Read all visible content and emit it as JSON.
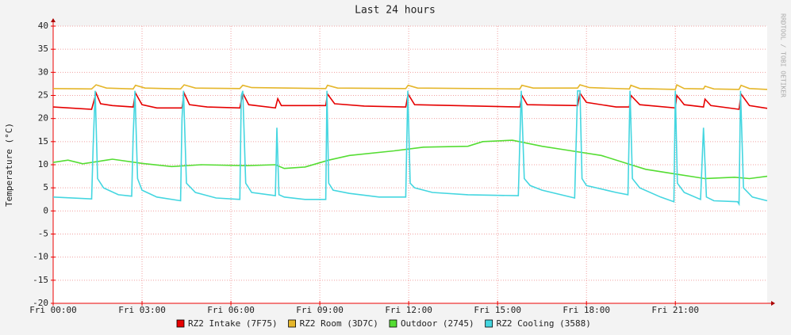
{
  "chart_data": {
    "type": "line",
    "title": "Last 24 hours",
    "y_label": "Temperature (°C)",
    "watermark": "RRDTOOL / TOBI OETIKER",
    "xlim": [
      0,
      24.1
    ],
    "ylim": [
      -20,
      40
    ],
    "xticks": [
      {
        "value": 0,
        "label": "Fri 00:00"
      },
      {
        "value": 3,
        "label": "Fri 03:00"
      },
      {
        "value": 6,
        "label": "Fri 06:00"
      },
      {
        "value": 9,
        "label": "Fri 09:00"
      },
      {
        "value": 12,
        "label": "Fri 12:00"
      },
      {
        "value": 15,
        "label": "Fri 15:00"
      },
      {
        "value": 18,
        "label": "Fri 18:00"
      },
      {
        "value": 21,
        "label": "Fri 21:00"
      }
    ],
    "yticks": [
      -20,
      -15,
      -10,
      -5,
      0,
      5,
      10,
      15,
      20,
      25,
      30,
      35,
      40
    ],
    "grid": true,
    "series": [
      {
        "name": "RZ2 Intake (7F75)",
        "color": "#e60000",
        "x": [
          0,
          1.3,
          1.45,
          1.6,
          2.0,
          2.7,
          2.78,
          3.0,
          3.5,
          4.35,
          4.42,
          4.6,
          5.2,
          6.3,
          6.4,
          6.6,
          7.5,
          7.58,
          7.7,
          9.2,
          9.26,
          9.5,
          10.5,
          11.9,
          11.98,
          12.2,
          15.75,
          15.82,
          16,
          17.7,
          17.78,
          18,
          19,
          19.45,
          19.5,
          19.8,
          21,
          21.05,
          21.3,
          21.95,
          22.0,
          22.2,
          23.15,
          23.22,
          23.5,
          24.1
        ],
        "values": [
          22.5,
          22,
          25.5,
          23.2,
          22.8,
          22.5,
          25.5,
          23,
          22.3,
          22.3,
          25.5,
          23,
          22.5,
          22.3,
          25.5,
          23,
          22.3,
          24.3,
          22.8,
          22.8,
          25.3,
          23.2,
          22.7,
          22.5,
          25.3,
          23,
          22.5,
          25,
          23,
          22.8,
          25.5,
          23.5,
          22.5,
          22.5,
          25,
          23,
          22.3,
          25,
          23,
          22.5,
          24.2,
          22.8,
          22,
          25.3,
          22.8,
          22.2
        ]
      },
      {
        "name": "RZ2 Room (3D7C)",
        "color": "#e5b62a",
        "x": [
          0,
          1.3,
          1.45,
          1.8,
          2.7,
          2.78,
          3.1,
          4.3,
          4.42,
          4.8,
          6.3,
          6.4,
          6.7,
          9.2,
          9.26,
          9.6,
          11.9,
          11.98,
          12.3,
          15.75,
          15.82,
          16.2,
          17.7,
          17.78,
          18.1,
          19.45,
          19.5,
          19.8,
          21,
          21.05,
          21.3,
          21.95,
          22.0,
          22.3,
          23.15,
          23.22,
          23.5,
          24.1
        ],
        "values": [
          26.5,
          26.4,
          27.3,
          26.6,
          26.4,
          27.2,
          26.6,
          26.4,
          27.3,
          26.6,
          26.5,
          27.2,
          26.7,
          26.5,
          27.2,
          26.6,
          26.5,
          27.2,
          26.6,
          26.4,
          27.2,
          26.6,
          26.6,
          27.3,
          26.7,
          26.4,
          27.2,
          26.5,
          26.3,
          27.3,
          26.5,
          26.4,
          27.0,
          26.4,
          26.3,
          27.2,
          26.5,
          26.3
        ]
      },
      {
        "name": "Outdoor (2745)",
        "color": "#55dd33",
        "x": [
          0,
          0.5,
          1,
          1.8,
          2,
          3,
          4,
          5,
          6.5,
          7.5,
          7.8,
          8.5,
          9.3,
          10,
          11.5,
          12.5,
          14,
          14.5,
          15.5,
          16.5,
          17.5,
          18.5,
          19.5,
          20,
          21,
          22,
          23,
          23.5,
          24.1
        ],
        "values": [
          10.5,
          11,
          10.2,
          11,
          11.2,
          10.3,
          9.6,
          10,
          9.8,
          10,
          9.2,
          9.5,
          11,
          12,
          13,
          13.8,
          14,
          15,
          15.3,
          14,
          13,
          12,
          10,
          9,
          8,
          7,
          7.3,
          7,
          7.5
        ]
      },
      {
        "name": "RZ2 Cooling (3588)",
        "color": "#44d6e0",
        "x": [
          0,
          1.3,
          1.35,
          1.42,
          1.5,
          1.7,
          2.2,
          2.65,
          2.7,
          2.76,
          2.85,
          3.0,
          3.5,
          4.3,
          4.35,
          4.4,
          4.5,
          4.8,
          5.5,
          6.3,
          6.35,
          6.4,
          6.5,
          6.7,
          7.5,
          7.55,
          7.62,
          7.8,
          8.5,
          9.2,
          9.24,
          9.3,
          9.45,
          10,
          11,
          11.9,
          11.97,
          12.05,
          12.2,
          12.8,
          14,
          15.7,
          15.8,
          15.9,
          16.1,
          16.5,
          17.6,
          17.7,
          17.78,
          17.85,
          18,
          19,
          19.4,
          19.47,
          19.55,
          19.8,
          20.5,
          20.95,
          21.0,
          21.07,
          21.3,
          21.85,
          21.95,
          22.05,
          22.3,
          23.1,
          23.15,
          23.2,
          23.3,
          23.6,
          24.1
        ],
        "values": [
          3,
          2.6,
          14,
          26,
          7,
          5,
          3.5,
          3.2,
          16,
          26,
          7,
          4.5,
          3,
          2.2,
          20,
          26,
          6,
          4,
          2.8,
          2.5,
          25,
          26,
          6,
          4,
          3.3,
          18,
          3.5,
          3,
          2.5,
          2.5,
          26,
          6,
          4.5,
          3.8,
          3,
          3,
          26,
          6,
          5,
          4,
          3.5,
          3.3,
          26,
          7,
          5.5,
          4.5,
          2.8,
          26,
          26,
          7,
          5.5,
          4,
          3.5,
          26,
          7,
          5,
          3,
          2,
          26,
          6,
          4,
          2.5,
          18,
          3,
          2.2,
          2,
          1.5,
          26,
          5,
          3,
          2.2
        ]
      }
    ]
  }
}
